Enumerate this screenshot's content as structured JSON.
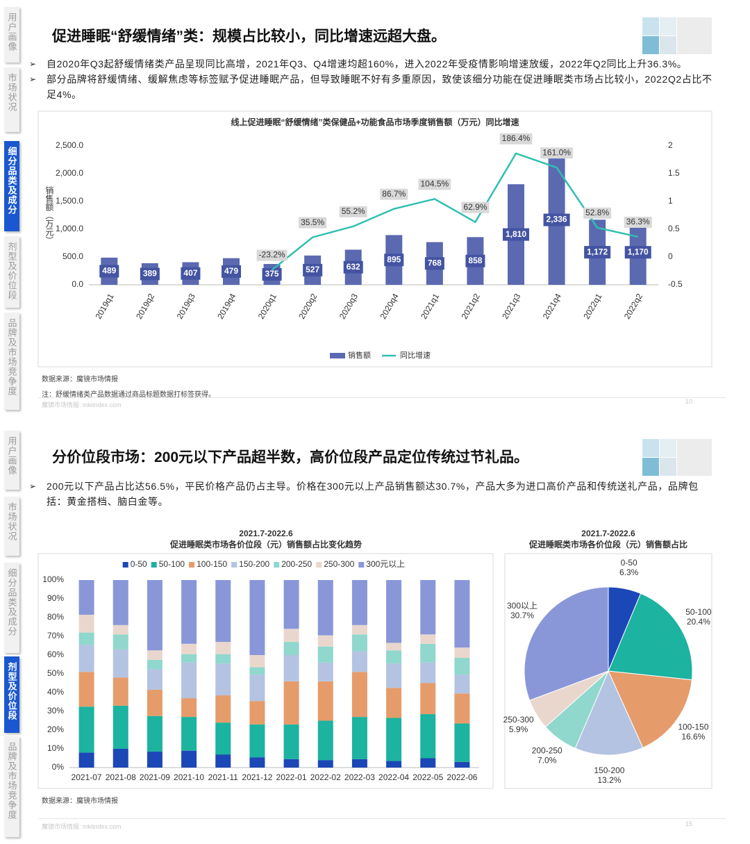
{
  "slides": [
    {
      "tabs": [
        "用户画像",
        "市场状况",
        "细分品类及成分",
        "剂型及价位段",
        "品牌及市场竞争度"
      ],
      "active_tab": 2,
      "title": "促进睡眠“舒缓情绪”类：规模占比较小，同比增速远超大盘。",
      "bullets": [
        "自2020年Q3起舒缓情绪类产品呈现同比高增，2021年Q3、Q4增速均超160%，进入2022年受疫情影响增速放缓，2022年Q2同比上升36.3%。",
        "部分品牌将舒缓情绪、缓解焦虑等标签赋予促进睡眠产品，但导致睡眠不好有多重原因，致使该细分功能在促进睡眠类市场占比较小，2022Q2占比不足4%。"
      ],
      "source": "数据来源：魔镜市场情报",
      "note": "注：舒缓情绪类产品数据通过商品标题数据打标签获得。",
      "footer": "魔镜市场情报: mktindex.com",
      "page_number": 10
    },
    {
      "tabs": [
        "用户画像",
        "市场状况",
        "细分品类及成分",
        "剂型及价位段",
        "品牌及市场竞争度"
      ],
      "active_tab": 3,
      "title": "分价位段市场：200元以下产品超半数，高价位段产品定位传统过节礼品。",
      "bullets": [
        "200元以下产品占比达56.5%，平民价格产品仍占主导。价格在300元以上产品销售额达30.7%，产品大多为进口高价产品和传统送礼产品，品牌包括：黄金搭档、脑白金等。"
      ],
      "source": "数据来源：魔镜市场情报",
      "footer": "魔镜市场情报: mktindex.com",
      "page_number": 15
    }
  ],
  "chart_data": [
    {
      "type": "bar",
      "title": "线上促进睡眠“舒缓情绪”类保健品+功能食品市场季度销售额（万元）同比增速",
      "y_label": "销售额（万元）",
      "categories": [
        "2019q1",
        "2019q2",
        "2019q3",
        "2019q4",
        "2020q1",
        "2020q2",
        "2020q3",
        "2020q4",
        "2021q1",
        "2021q2",
        "2021q3",
        "2021q4",
        "2022q1",
        "2022q2"
      ],
      "series": [
        {
          "name": "销售额",
          "color": "#5b69b1",
          "values": [
            489,
            389,
            407,
            479,
            375,
            527,
            632,
            895,
            768,
            858,
            1810,
            2336,
            1172,
            1170
          ],
          "value_labels": [
            "489",
            "389",
            "407",
            "479",
            "375",
            "527",
            "632",
            "895",
            "768",
            "858",
            "1,810",
            "2,336",
            "1,172",
            "1,170"
          ]
        },
        {
          "name": "同比增速",
          "type": "line",
          "axis": "y2",
          "color": "#2fbfb1",
          "values": [
            null,
            null,
            null,
            null,
            -0.232,
            0.355,
            0.552,
            0.867,
            1.045,
            0.629,
            1.864,
            1.61,
            0.528,
            0.363
          ],
          "value_labels": [
            null,
            null,
            null,
            null,
            "-23.2%",
            "35.5%",
            "55.2%",
            "86.7%",
            "104.5%",
            "62.9%",
            "186.4%",
            "161.0%",
            "52.8%",
            "36.3%"
          ]
        }
      ],
      "ylim": [
        0,
        2500
      ],
      "yticks": [
        {
          "value": 0,
          "label": "0.0"
        },
        {
          "value": 500,
          "label": "500.0"
        },
        {
          "value": 1000,
          "label": "1,000.0"
        },
        {
          "value": 1500,
          "label": "1,500.0"
        },
        {
          "value": 2000,
          "label": "2,000.0"
        },
        {
          "value": 2500,
          "label": "2,500.0"
        }
      ],
      "y2lim": [
        -0.5,
        2
      ],
      "y2ticks": [
        -0.5,
        0,
        0.5,
        1,
        1.5,
        2
      ],
      "legend": "bottom"
    },
    {
      "type": "stacked_bar",
      "title": "2021.7-2022.6",
      "subtitle": "促进睡眠类市场各价位段（元）销售额占比变化趋势",
      "categories": [
        "2021-07",
        "2021-08",
        "2021-09",
        "2021-10",
        "2021-11",
        "2021-12",
        "2022-01",
        "2022-02",
        "2022-03",
        "2022-04",
        "2022-05",
        "2022-06"
      ],
      "series": [
        {
          "name": "0-50",
          "color": "#1c47b6",
          "values": [
            8,
            10,
            8.5,
            9,
            7,
            5.5,
            4.5,
            4,
            4.5,
            3.5,
            5,
            3
          ]
        },
        {
          "name": "50-100",
          "color": "#1cb3a0",
          "values": [
            24.5,
            23,
            19,
            18,
            17,
            17.5,
            18.5,
            21,
            22.5,
            23,
            23.5,
            20.5
          ]
        },
        {
          "name": "100-150",
          "color": "#e69b6b",
          "values": [
            18.5,
            15,
            14,
            10,
            14.5,
            12.5,
            23,
            21,
            24,
            16,
            16.5,
            16
          ]
        },
        {
          "name": "150-200",
          "color": "#b4c3e1",
          "values": [
            14.5,
            15,
            11,
            19,
            17,
            14,
            14,
            10,
            11,
            13,
            11,
            10
          ]
        },
        {
          "name": "200-250",
          "color": "#90d7cd",
          "values": [
            6.5,
            8,
            5,
            4.5,
            5,
            4,
            7,
            8.5,
            9,
            7,
            10,
            9
          ]
        },
        {
          "name": "250-300",
          "color": "#e9d7cd",
          "values": [
            9.5,
            5,
            5,
            5.5,
            6.5,
            6.5,
            7,
            6,
            5,
            4,
            5,
            5.5
          ]
        },
        {
          "name": "300元以上",
          "color": "#8997d9",
          "values": [
            18.5,
            24,
            37.5,
            34,
            33,
            40,
            26,
            29.5,
            24,
            33.5,
            29,
            36
          ]
        }
      ],
      "ylim": [
        0,
        100
      ],
      "yticks": [
        {
          "value": 0,
          "label": "0%"
        },
        {
          "value": 10,
          "label": "10%"
        },
        {
          "value": 20,
          "label": "20%"
        },
        {
          "value": 30,
          "label": "30%"
        },
        {
          "value": 40,
          "label": "40%"
        },
        {
          "value": 50,
          "label": "50%"
        },
        {
          "value": 60,
          "label": "60%"
        },
        {
          "value": 70,
          "label": "70%"
        },
        {
          "value": 80,
          "label": "80%"
        },
        {
          "value": 90,
          "label": "90%"
        },
        {
          "value": 100,
          "label": "100%"
        }
      ],
      "legend": "top"
    },
    {
      "type": "pie",
      "title": "2021.7-2022.6",
      "subtitle": "促进睡眠类市场各价位段（元）销售额占比",
      "categories": [
        "0-50",
        "50-100",
        "100-150",
        "150-200",
        "200-250",
        "250-300",
        "300以上"
      ],
      "values": [
        6.3,
        20.4,
        16.6,
        13.2,
        7.0,
        5.9,
        30.7
      ],
      "value_labels": [
        "6.3%",
        "20.4%",
        "16.6%",
        "13.2%",
        "7.0%",
        "5.9%",
        "30.7%"
      ],
      "colors": [
        "#1c47b6",
        "#1cb3a0",
        "#e69b6b",
        "#b4c3e1",
        "#90d7cd",
        "#e9d7cd",
        "#8997d9"
      ]
    }
  ]
}
